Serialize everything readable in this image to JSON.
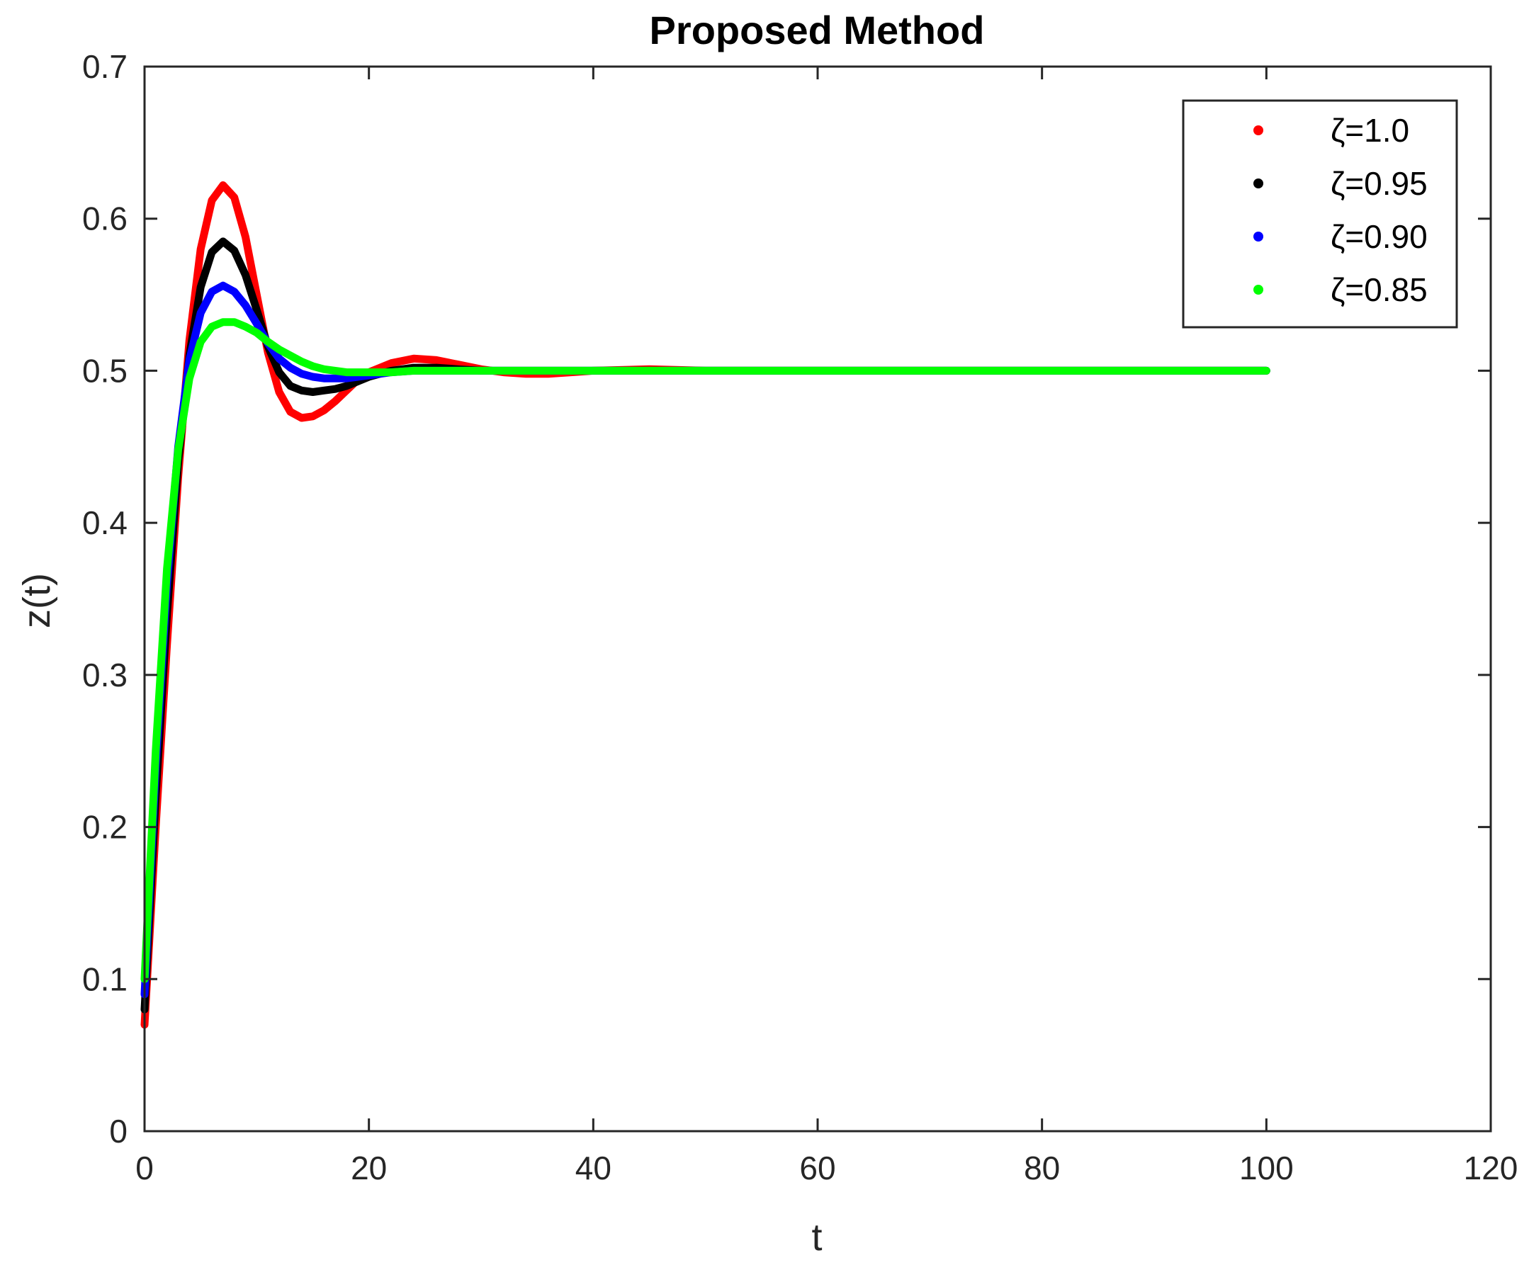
{
  "chart_data": {
    "type": "line",
    "title": "Proposed Method",
    "xlabel": "t",
    "ylabel": "z(t)",
    "xlim": [
      0,
      120
    ],
    "ylim": [
      0,
      0.7
    ],
    "xticks": [
      0,
      20,
      40,
      60,
      80,
      100,
      120
    ],
    "yticks": [
      0,
      0.1,
      0.2,
      0.3,
      0.4,
      0.5,
      0.6,
      0.7
    ],
    "grid": false,
    "legend_position": "top-right",
    "series": [
      {
        "name": "ζ=1.0",
        "color": "#ff0000",
        "x": [
          0,
          1,
          2,
          3,
          4,
          5,
          6,
          7,
          8,
          9,
          10,
          11,
          12,
          13,
          14,
          15,
          16,
          17,
          18,
          19,
          20,
          22,
          24,
          26,
          28,
          30,
          32,
          34,
          36,
          38,
          40,
          45,
          50,
          60,
          70,
          80,
          90,
          100
        ],
        "y": [
          0.07,
          0.2,
          0.32,
          0.43,
          0.52,
          0.58,
          0.612,
          0.622,
          0.614,
          0.588,
          0.55,
          0.512,
          0.486,
          0.473,
          0.469,
          0.47,
          0.474,
          0.48,
          0.487,
          0.494,
          0.499,
          0.505,
          0.508,
          0.507,
          0.504,
          0.501,
          0.499,
          0.498,
          0.498,
          0.499,
          0.5,
          0.501,
          0.5,
          0.5,
          0.5,
          0.5,
          0.5,
          0.5
        ]
      },
      {
        "name": "ζ=0.95",
        "color": "#000000",
        "x": [
          0,
          1,
          2,
          3,
          4,
          5,
          6,
          7,
          8,
          9,
          10,
          11,
          12,
          13,
          14,
          15,
          16,
          17,
          18,
          19,
          20,
          22,
          24,
          26,
          28,
          30,
          35,
          40,
          50,
          60,
          70,
          80,
          90,
          100
        ],
        "y": [
          0.08,
          0.22,
          0.34,
          0.44,
          0.51,
          0.555,
          0.578,
          0.585,
          0.579,
          0.563,
          0.54,
          0.516,
          0.499,
          0.49,
          0.487,
          0.486,
          0.487,
          0.488,
          0.49,
          0.493,
          0.496,
          0.5,
          0.502,
          0.502,
          0.501,
          0.5,
          0.5,
          0.5,
          0.5,
          0.5,
          0.5,
          0.5,
          0.5,
          0.5
        ]
      },
      {
        "name": "ζ=0.90",
        "color": "#0000ff",
        "x": [
          0,
          1,
          2,
          3,
          4,
          5,
          6,
          7,
          8,
          9,
          10,
          11,
          12,
          13,
          14,
          15,
          16,
          17,
          18,
          19,
          20,
          22,
          24,
          26,
          30,
          35,
          40,
          50,
          60,
          70,
          80,
          90,
          100
        ],
        "y": [
          0.09,
          0.24,
          0.36,
          0.45,
          0.507,
          0.538,
          0.552,
          0.556,
          0.552,
          0.543,
          0.531,
          0.518,
          0.508,
          0.502,
          0.498,
          0.496,
          0.495,
          0.495,
          0.495,
          0.496,
          0.497,
          0.499,
          0.5,
          0.5,
          0.5,
          0.5,
          0.5,
          0.5,
          0.5,
          0.5,
          0.5,
          0.5,
          0.5
        ]
      },
      {
        "name": "ζ=0.85",
        "color": "#00ff00",
        "x": [
          0,
          1,
          2,
          3,
          4,
          5,
          6,
          7,
          8,
          9,
          10,
          11,
          12,
          13,
          14,
          15,
          16,
          17,
          18,
          19,
          20,
          22,
          24,
          26,
          30,
          35,
          40,
          50,
          60,
          70,
          80,
          90,
          100
        ],
        "y": [
          0.1,
          0.25,
          0.37,
          0.448,
          0.495,
          0.519,
          0.529,
          0.532,
          0.532,
          0.529,
          0.525,
          0.519,
          0.514,
          0.51,
          0.506,
          0.503,
          0.501,
          0.5,
          0.499,
          0.499,
          0.499,
          0.499,
          0.5,
          0.5,
          0.5,
          0.5,
          0.5,
          0.5,
          0.5,
          0.5,
          0.5,
          0.5,
          0.5
        ]
      }
    ]
  }
}
